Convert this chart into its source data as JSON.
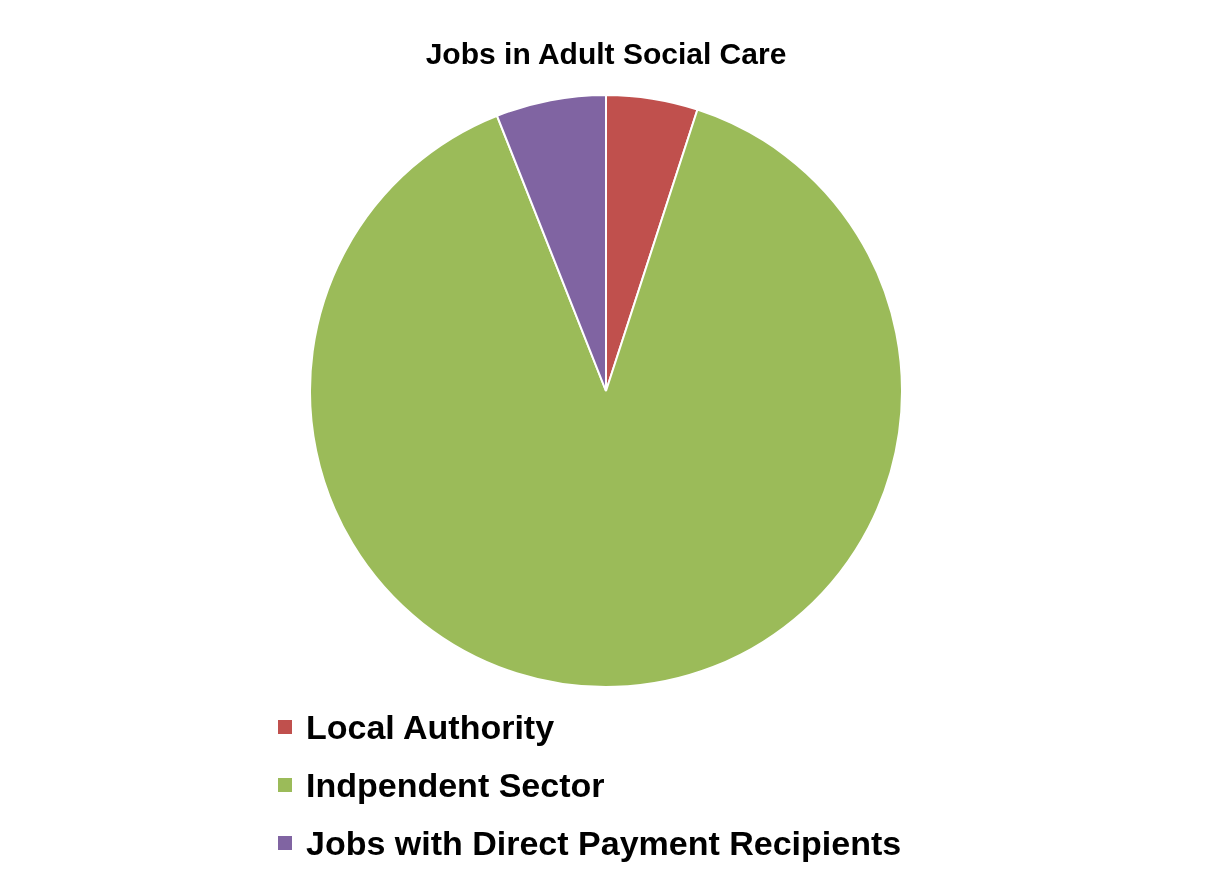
{
  "chart_data": {
    "type": "pie",
    "title": "Jobs in Adult Social Care",
    "categories": [
      "Local Authority",
      "Indpendent Sector",
      "Jobs with Direct Payment Recipients"
    ],
    "values": [
      5,
      89,
      6
    ],
    "colors": [
      "#c0504d",
      "#9bbb59",
      "#8064a2"
    ],
    "legend": "bottom"
  }
}
